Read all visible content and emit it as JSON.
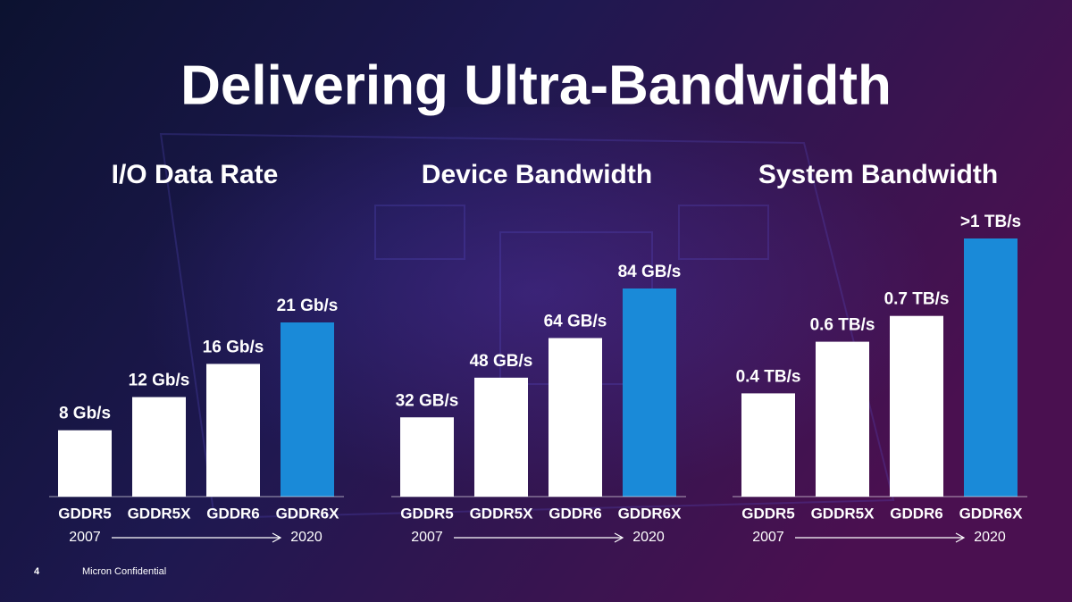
{
  "title": "Delivering Ultra-Bandwidth",
  "footer": {
    "page": "4",
    "text": "Micron Confidential"
  },
  "chart_data": [
    {
      "type": "bar",
      "title": "I/O Data Rate",
      "categories": [
        "GDDR5",
        "GDDR5X",
        "GDDR6",
        "GDDR6X"
      ],
      "values": [
        8,
        12,
        16,
        21
      ],
      "value_labels": [
        "8 Gb/s",
        "12 Gb/s",
        "16 Gb/s",
        "21 Gb/s"
      ],
      "colors": [
        "#ffffff",
        "#ffffff",
        "#ffffff",
        "#1a8ad8"
      ],
      "timeline": [
        "2007",
        "2020"
      ]
    },
    {
      "type": "bar",
      "title": "Device Bandwidth",
      "categories": [
        "GDDR5",
        "GDDR5X",
        "GDDR6",
        "GDDR6X"
      ],
      "values": [
        32,
        48,
        64,
        84
      ],
      "value_labels": [
        "32 GB/s",
        "48 GB/s",
        "64 GB/s",
        "84 GB/s"
      ],
      "colors": [
        "#ffffff",
        "#ffffff",
        "#ffffff",
        "#1a8ad8"
      ],
      "timeline": [
        "2007",
        "2020"
      ]
    },
    {
      "type": "bar",
      "title": "System Bandwidth",
      "categories": [
        "GDDR5",
        "GDDR5X",
        "GDDR6",
        "GDDR6X"
      ],
      "values": [
        0.4,
        0.6,
        0.7,
        1
      ],
      "value_labels": [
        "0.4 TB/s",
        "0.6 TB/s",
        "0.7 TB/s",
        ">1 TB/s"
      ],
      "colors": [
        "#ffffff",
        "#ffffff",
        "#ffffff",
        "#1a8ad8"
      ],
      "timeline": [
        "2007",
        "2020"
      ]
    }
  ]
}
